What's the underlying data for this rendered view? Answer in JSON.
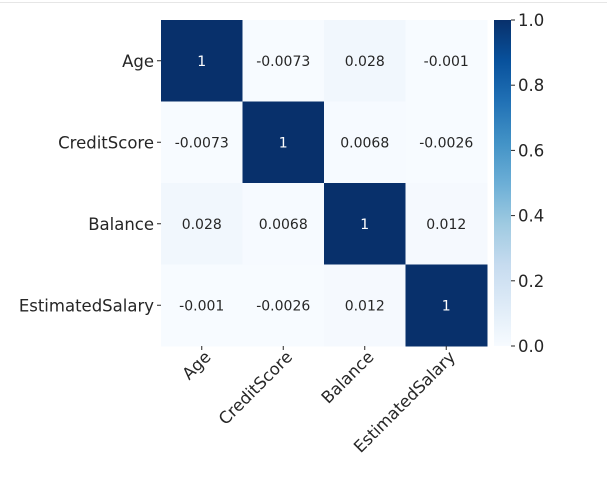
{
  "chart_data": {
    "type": "heatmap",
    "title": "",
    "xlabel": "",
    "ylabel": "",
    "rows": [
      "Age",
      "CreditScore",
      "Balance",
      "EstimatedSalary"
    ],
    "cols": [
      "Age",
      "CreditScore",
      "Balance",
      "EstimatedSalary"
    ],
    "values": [
      [
        1,
        -0.0073,
        0.028,
        -0.001
      ],
      [
        -0.0073,
        1,
        0.0068,
        -0.0026
      ],
      [
        0.028,
        0.0068,
        1,
        0.012
      ],
      [
        -0.001,
        -0.0026,
        0.012,
        1
      ]
    ],
    "cell_labels": [
      [
        "1",
        "-0.0073",
        "0.028",
        "-0.001"
      ],
      [
        "-0.0073",
        "1",
        "0.0068",
        "-0.0026"
      ],
      [
        "0.028",
        "0.0068",
        "1",
        "0.012"
      ],
      [
        "-0.001",
        "-0.0026",
        "0.012",
        "1"
      ]
    ],
    "colormap": "Blues",
    "color_range": [
      0,
      1
    ],
    "colorbar": {
      "ticks": [
        0.0,
        0.2,
        0.4,
        0.6,
        0.8,
        1.0
      ],
      "tick_labels": [
        "0.0",
        "0.2",
        "0.4",
        "0.6",
        "0.8",
        "1.0"
      ],
      "placement": "right"
    },
    "grid": false
  },
  "colors": {
    "low": "#f7fbff",
    "high": "#08306b",
    "text_dark": "#262626",
    "text_light": "#ffffff"
  }
}
